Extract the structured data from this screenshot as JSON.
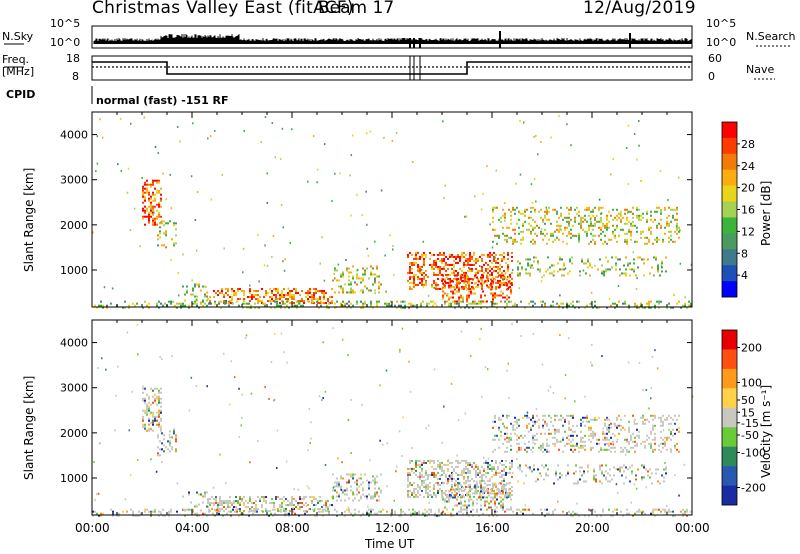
{
  "header": {
    "title": "Christmas Valley East (fitACF)",
    "beam": "Beam 17",
    "date": "12/Aug/2019"
  },
  "panels": {
    "nsky_label": "N.Sky",
    "nsearch_label": "N.Search",
    "nsky_ticks": [
      "10^5",
      "10^0"
    ],
    "nsearch_ticks": [
      "10^5",
      "10^0"
    ],
    "freq_label_1": "Freq.",
    "freq_label_2": "[MHz]",
    "freq_ticks": [
      "18",
      "8"
    ],
    "nave_label": "Nave",
    "nave_ticks": [
      "60",
      "0"
    ],
    "cpid_label": "CPID",
    "cpid_text": "normal (fast) -151 RF"
  },
  "chart_data": [
    {
      "type": "heatmap",
      "quantity": "Power",
      "ylabel": "Slant Range [km]",
      "xlabel": "Time UT",
      "x_ticks": [
        "00:00",
        "04:00",
        "08:00",
        "12:00",
        "16:00",
        "20:00",
        "00:00"
      ],
      "xlim_hours": [
        0,
        24
      ],
      "y_ticks": [
        1000,
        2000,
        3000,
        4000
      ],
      "ylim_km": [
        180,
        4500
      ],
      "colorbar": {
        "label": "Power [dB]",
        "ticks": [
          4,
          8,
          12,
          16,
          20,
          24,
          28
        ],
        "range": [
          0,
          32
        ]
      },
      "colors": [
        "#0000ff",
        "#1e4fb4",
        "#3e7a8c",
        "#4b9a62",
        "#3cb43c",
        "#a6d254",
        "#e8d41a",
        "#fbac10",
        "#f47a08",
        "#ff3c00",
        "#ff0000"
      ]
    },
    {
      "type": "heatmap",
      "quantity": "Velocity",
      "ylabel": "Slant Range [km]",
      "xlabel": "Time UT",
      "x_ticks": [
        "00:00",
        "04:00",
        "08:00",
        "12:00",
        "16:00",
        "20:00",
        "00:00"
      ],
      "xlim_hours": [
        0,
        24
      ],
      "y_ticks": [
        1000,
        2000,
        3000,
        4000
      ],
      "ylim_km": [
        180,
        4500
      ],
      "colorbar": {
        "label": "Velocity [m s⁻¹]",
        "ticks": [
          200,
          100,
          50,
          15,
          -15,
          -50,
          -100,
          -200
        ],
        "range": [
          -250,
          250
        ]
      },
      "colors": [
        "#1a2aa0",
        "#2858b0",
        "#2e8a5a",
        "#6acb3a",
        "#c8c8c0",
        "#ffd24a",
        "#ff9a1a",
        "#ff5010",
        "#e80000"
      ]
    }
  ]
}
